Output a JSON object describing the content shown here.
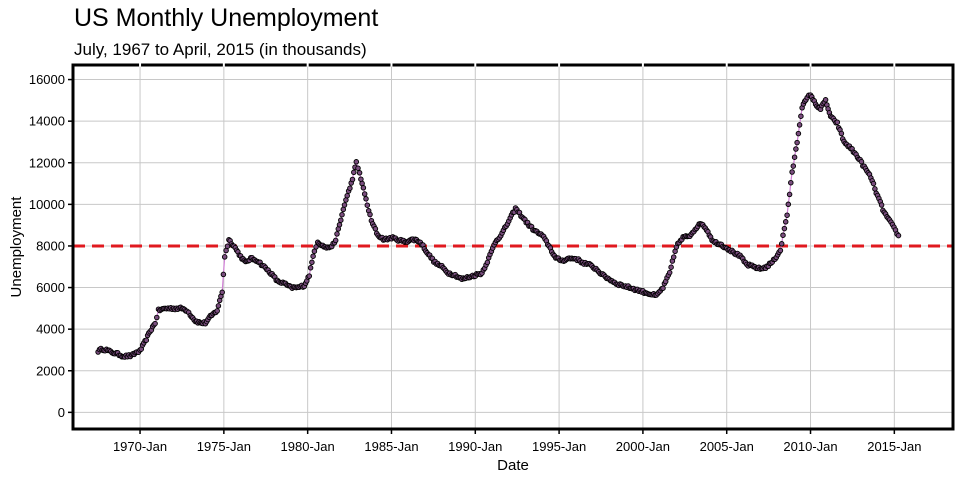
{
  "chart_data": {
    "type": "line",
    "title": "US Monthly Unemployment",
    "subtitle": "July, 1967 to April, 2015 (in thousands)",
    "xlabel": "Date",
    "ylabel": "Unemployment",
    "x_tick_labels": [
      "1970-Jan",
      "1975-Jan",
      "1980-Jan",
      "1985-Jan",
      "1990-Jan",
      "1995-Jan",
      "2000-Jan",
      "2005-Jan",
      "2010-Jan",
      "2015-Jan"
    ],
    "x_tick_years": [
      1970,
      1975,
      1980,
      1985,
      1990,
      1995,
      2000,
      2005,
      2010,
      2015
    ],
    "xlim": [
      1966.0,
      2018.5
    ],
    "y_ticks": [
      0,
      2000,
      4000,
      6000,
      8000,
      10000,
      12000,
      14000,
      16000
    ],
    "ylim": [
      -800,
      16700
    ],
    "grid": true,
    "reference_line": {
      "y": 8000,
      "color": "#e0191f",
      "style": "dashed"
    },
    "colors": {
      "line": "#d17fd6",
      "point_fill": "#7a4d7e",
      "point_stroke": "#000000",
      "frame": "#000000",
      "grid": "#c8c8c8"
    },
    "series": [
      {
        "name": "",
        "points": [
          [
            1967.5,
            2950
          ],
          [
            1967.75,
            3050
          ],
          [
            1968.0,
            3000
          ],
          [
            1968.25,
            2900
          ],
          [
            1968.5,
            2850
          ],
          [
            1968.75,
            2780
          ],
          [
            1969.0,
            2700
          ],
          [
            1969.5,
            2720
          ],
          [
            1969.8,
            2900
          ],
          [
            1970.0,
            2950
          ],
          [
            1970.3,
            3400
          ],
          [
            1970.6,
            3900
          ],
          [
            1970.9,
            4300
          ],
          [
            1971.1,
            4900
          ],
          [
            1971.5,
            5000
          ],
          [
            1972.0,
            5000
          ],
          [
            1972.5,
            5000
          ],
          [
            1972.8,
            4900
          ],
          [
            1973.0,
            4700
          ],
          [
            1973.3,
            4400
          ],
          [
            1973.6,
            4300
          ],
          [
            1973.9,
            4300
          ],
          [
            1974.2,
            4600
          ],
          [
            1974.6,
            4900
          ],
          [
            1974.9,
            5800
          ],
          [
            1975.05,
            7500
          ],
          [
            1975.3,
            8300
          ],
          [
            1975.6,
            8000
          ],
          [
            1976.0,
            7500
          ],
          [
            1976.3,
            7200
          ],
          [
            1976.6,
            7400
          ],
          [
            1977.0,
            7300
          ],
          [
            1977.4,
            7000
          ],
          [
            1977.8,
            6700
          ],
          [
            1978.2,
            6300
          ],
          [
            1978.6,
            6200
          ],
          [
            1979.0,
            6000
          ],
          [
            1979.4,
            6000
          ],
          [
            1979.8,
            6100
          ],
          [
            1980.1,
            6600
          ],
          [
            1980.4,
            7800
          ],
          [
            1980.6,
            8200
          ],
          [
            1980.9,
            8000
          ],
          [
            1981.2,
            7900
          ],
          [
            1981.6,
            8100
          ],
          [
            1981.9,
            9000
          ],
          [
            1982.2,
            10000
          ],
          [
            1982.6,
            11000
          ],
          [
            1982.9,
            12000
          ],
          [
            1983.1,
            11500
          ],
          [
            1983.4,
            10500
          ],
          [
            1983.8,
            9200
          ],
          [
            1984.2,
            8500
          ],
          [
            1984.6,
            8300
          ],
          [
            1985.0,
            8400
          ],
          [
            1985.4,
            8300
          ],
          [
            1985.8,
            8200
          ],
          [
            1986.2,
            8300
          ],
          [
            1986.5,
            8300
          ],
          [
            1986.8,
            8100
          ],
          [
            1987.2,
            7600
          ],
          [
            1987.6,
            7200
          ],
          [
            1988.0,
            7000
          ],
          [
            1988.4,
            6700
          ],
          [
            1988.8,
            6600
          ],
          [
            1989.2,
            6400
          ],
          [
            1989.6,
            6500
          ],
          [
            1990.0,
            6600
          ],
          [
            1990.4,
            6700
          ],
          [
            1990.8,
            7400
          ],
          [
            1991.2,
            8200
          ],
          [
            1991.6,
            8600
          ],
          [
            1992.0,
            9200
          ],
          [
            1992.4,
            9800
          ],
          [
            1992.8,
            9400
          ],
          [
            1993.2,
            9000
          ],
          [
            1993.6,
            8700
          ],
          [
            1994.0,
            8500
          ],
          [
            1994.4,
            8000
          ],
          [
            1994.8,
            7400
          ],
          [
            1995.2,
            7300
          ],
          [
            1995.6,
            7400
          ],
          [
            1996.0,
            7400
          ],
          [
            1996.4,
            7200
          ],
          [
            1996.8,
            7100
          ],
          [
            1997.2,
            6900
          ],
          [
            1997.6,
            6600
          ],
          [
            1998.0,
            6400
          ],
          [
            1998.4,
            6200
          ],
          [
            1998.8,
            6100
          ],
          [
            1999.2,
            6000
          ],
          [
            1999.6,
            5900
          ],
          [
            2000.0,
            5800
          ],
          [
            2000.4,
            5700
          ],
          [
            2000.8,
            5600
          ],
          [
            2001.2,
            6000
          ],
          [
            2001.6,
            6700
          ],
          [
            2002.0,
            8000
          ],
          [
            2002.4,
            8400
          ],
          [
            2002.8,
            8500
          ],
          [
            2003.2,
            8900
          ],
          [
            2003.5,
            9100
          ],
          [
            2003.8,
            8800
          ],
          [
            2004.2,
            8200
          ],
          [
            2004.6,
            8100
          ],
          [
            2005.0,
            7900
          ],
          [
            2005.4,
            7700
          ],
          [
            2005.8,
            7500
          ],
          [
            2006.2,
            7100
          ],
          [
            2006.6,
            7000
          ],
          [
            2007.0,
            6900
          ],
          [
            2007.4,
            7000
          ],
          [
            2007.8,
            7300
          ],
          [
            2008.2,
            7800
          ],
          [
            2008.6,
            9500
          ],
          [
            2008.9,
            11500
          ],
          [
            2009.2,
            13000
          ],
          [
            2009.5,
            14700
          ],
          [
            2009.8,
            15100
          ],
          [
            2010.0,
            15300
          ],
          [
            2010.3,
            14800
          ],
          [
            2010.6,
            14600
          ],
          [
            2010.9,
            15000
          ],
          [
            2011.2,
            14200
          ],
          [
            2011.6,
            13900
          ],
          [
            2012.0,
            13000
          ],
          [
            2012.4,
            12700
          ],
          [
            2012.8,
            12300
          ],
          [
            2013.2,
            11800
          ],
          [
            2013.6,
            11300
          ],
          [
            2014.0,
            10400
          ],
          [
            2014.4,
            9600
          ],
          [
            2014.8,
            9100
          ],
          [
            2015.25,
            8500
          ]
        ]
      }
    ]
  }
}
